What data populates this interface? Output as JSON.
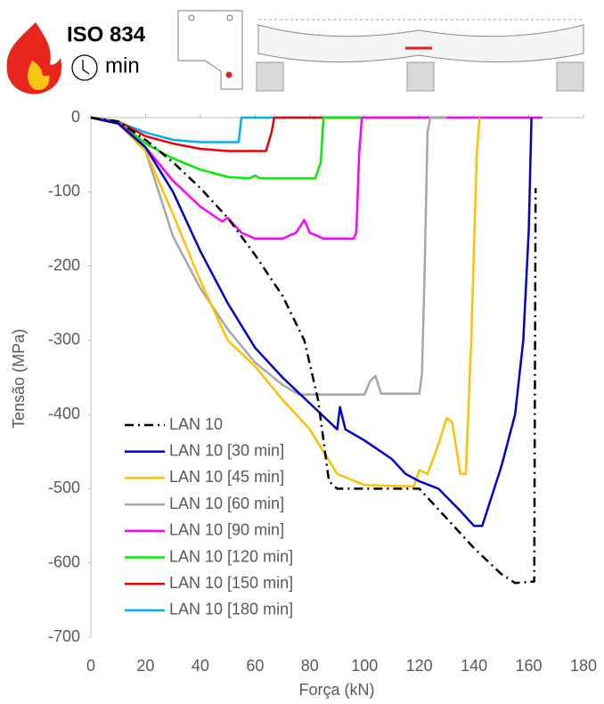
{
  "chart_data": {
    "type": "line",
    "annotations": [
      "ISO 834",
      "min"
    ],
    "x_label": "Força (kN)",
    "y_label": "Tensão (MPa)",
    "xlim": [
      0,
      180
    ],
    "xticks": [
      0,
      20,
      40,
      60,
      80,
      100,
      120,
      140,
      160,
      180
    ],
    "ylim": [
      -700,
      0
    ],
    "yticks": [
      0,
      -100,
      -200,
      -300,
      -400,
      -500,
      -600,
      -700
    ],
    "series": [
      {
        "name": "LAN 10",
        "color": "#000000",
        "dash": "dashdot",
        "x": [
          0,
          10,
          20,
          30,
          40,
          50,
          60,
          70,
          78,
          83,
          87,
          90,
          120,
          130,
          140,
          150,
          155,
          162,
          162.5
        ],
        "values": [
          0,
          -5,
          -30,
          -60,
          -95,
          -135,
          -185,
          -240,
          -300,
          -380,
          -490,
          -500,
          -500,
          -540,
          -580,
          -615,
          -627,
          -625,
          -95
        ]
      },
      {
        "name": "LAN 10 [30 min]",
        "color": "#0000cc",
        "x": [
          0,
          10,
          20,
          30,
          40,
          50,
          60,
          70,
          80,
          90,
          91,
          93,
          100,
          110,
          115,
          120,
          127,
          135,
          140,
          143,
          150,
          155,
          158,
          160,
          161
        ],
        "values": [
          0,
          -8,
          -40,
          -100,
          -180,
          -250,
          -310,
          -350,
          -385,
          -420,
          -390,
          -420,
          -435,
          -460,
          -480,
          -490,
          -500,
          -530,
          -550,
          -550,
          -470,
          -400,
          -300,
          -150,
          0
        ]
      },
      {
        "name": "LAN 10 [45 min]",
        "color": "#ffc000",
        "x": [
          0,
          10,
          20,
          30,
          40,
          50,
          60,
          70,
          80,
          85,
          90,
          100,
          118,
          120,
          123,
          127,
          130,
          132,
          135,
          137,
          139,
          141,
          142
        ],
        "values": [
          0,
          -8,
          -45,
          -130,
          -220,
          -300,
          -335,
          -380,
          -420,
          -450,
          -480,
          -495,
          -497,
          -475,
          -480,
          -440,
          -405,
          -410,
          -480,
          -480,
          -300,
          -50,
          0
        ]
      },
      {
        "name": "LAN 10 [60 min]",
        "color": "#a6a6a6",
        "x": [
          0,
          10,
          20,
          30,
          40,
          50,
          60,
          70,
          76,
          100,
          102,
          104,
          106,
          120,
          121,
          122,
          123,
          124,
          130
        ],
        "values": [
          0,
          -8,
          -45,
          -160,
          -230,
          -285,
          -330,
          -360,
          -373,
          -373,
          -355,
          -348,
          -372,
          -372,
          -345,
          -200,
          -20,
          0,
          0
        ]
      },
      {
        "name": "LAN 10 [90 min]",
        "color": "#ff00ff",
        "x": [
          0,
          10,
          20,
          30,
          40,
          48,
          50,
          55,
          60,
          70,
          75,
          78,
          80,
          85,
          96,
          97,
          98,
          99,
          165
        ],
        "values": [
          0,
          -6,
          -40,
          -85,
          -120,
          -140,
          -135,
          -155,
          -163,
          -163,
          -155,
          -138,
          -155,
          -163,
          -163,
          -155,
          -50,
          0,
          0
        ]
      },
      {
        "name": "LAN 10 [120 min]",
        "color": "#00ee00",
        "x": [
          0,
          10,
          20,
          30,
          40,
          50,
          58,
          60,
          62,
          82,
          84,
          85,
          130
        ],
        "values": [
          0,
          -5,
          -35,
          -55,
          -70,
          -80,
          -82,
          -78,
          -82,
          -82,
          -60,
          0,
          0
        ]
      },
      {
        "name": "LAN 10 [150 min]",
        "color": "#ee0000",
        "x": [
          0,
          10,
          20,
          30,
          40,
          50,
          64,
          66,
          67,
          120
        ],
        "values": [
          0,
          -5,
          -25,
          -35,
          -42,
          -45,
          -45,
          -20,
          0,
          0
        ]
      },
      {
        "name": "LAN 10 [180 min]",
        "color": "#00b0f0",
        "x": [
          0,
          10,
          20,
          30,
          40,
          54,
          55,
          100
        ],
        "values": [
          0,
          -6,
          -20,
          -30,
          -33,
          -33,
          0,
          0
        ]
      }
    ]
  }
}
